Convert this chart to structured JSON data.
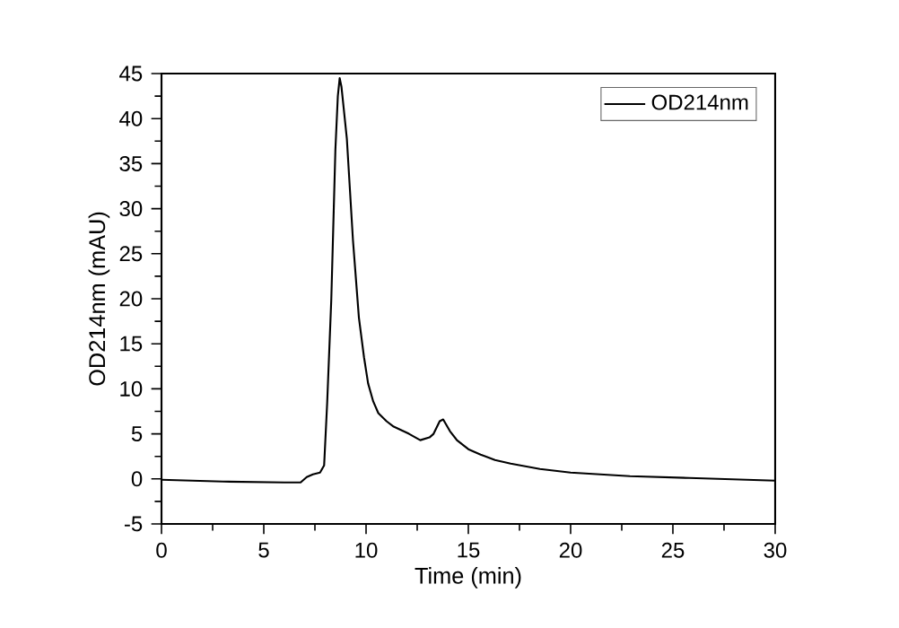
{
  "chart_data": {
    "type": "line",
    "xlabel": "Time (min)",
    "ylabel": "OD214nm (mAU)",
    "xlim": [
      0,
      30
    ],
    "xticks": [
      0,
      5,
      10,
      15,
      20,
      25,
      30
    ],
    "ylim": [
      -5,
      45
    ],
    "yticks": [
      -5,
      0,
      5,
      10,
      15,
      20,
      25,
      30,
      35,
      40,
      45
    ],
    "legend": "top right",
    "grid": false,
    "marker": "none",
    "line_style": "solid",
    "series": [
      {
        "name": "OD214nm",
        "color": "#000000",
        "x": [
          0,
          3,
          6,
          6.8,
          7.1,
          7.4,
          7.75,
          7.95,
          8.1,
          8.3,
          8.5,
          8.62,
          8.71,
          8.8,
          9.06,
          9.36,
          9.65,
          9.9,
          10.1,
          10.35,
          10.6,
          11,
          11.35,
          12.1,
          12.65,
          13.1,
          13.3,
          13.6,
          13.77,
          14.1,
          14.44,
          15,
          15.6,
          16.3,
          17.07,
          18.5,
          20,
          22.9,
          25.8,
          30
        ],
        "values": [
          -0.1,
          -0.3,
          -0.4,
          -0.4,
          0.2,
          0.5,
          0.7,
          1.5,
          8.5,
          19.9,
          36.5,
          42.5,
          44.5,
          43.5,
          37.8,
          26.5,
          17.9,
          13.5,
          10.6,
          8.6,
          7.3,
          6.4,
          5.8,
          5.0,
          4.3,
          4.6,
          5.0,
          6.4,
          6.6,
          5.3,
          4.3,
          3.3,
          2.7,
          2.1,
          1.7,
          1.1,
          0.7,
          0.3,
          0.1,
          -0.2
        ]
      }
    ]
  }
}
